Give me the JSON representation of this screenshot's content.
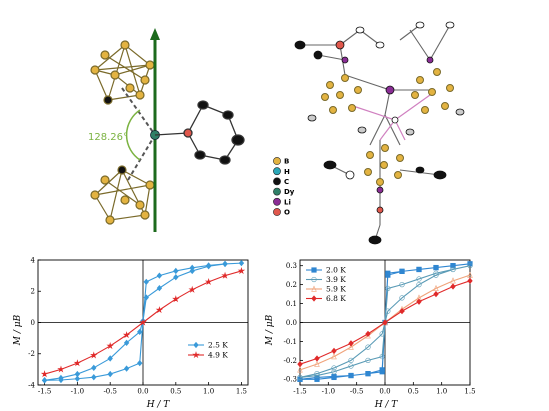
{
  "top_left": {
    "angle_label": "128.26°"
  },
  "element_legend": [
    {
      "symbol": "B",
      "color": "#e3b341"
    },
    {
      "symbol": "H",
      "color": "#2aa7b8"
    },
    {
      "symbol": "C",
      "color": "#111111"
    },
    {
      "symbol": "Dy",
      "color": "#2f7f67"
    },
    {
      "symbol": "Li",
      "color": "#8a2d95"
    },
    {
      "symbol": "O",
      "color": "#e0574c"
    }
  ],
  "chart_data": [
    {
      "type": "line",
      "xlabel": "H / T",
      "ylabel": "M / μB",
      "xlim": [
        -1.6,
        1.6
      ],
      "ylim": [
        -4,
        4
      ],
      "xticks": [
        -1.5,
        -1.0,
        -0.5,
        0.0,
        0.5,
        1.0,
        1.5
      ],
      "yticks": [
        -4,
        -2,
        0,
        2,
        4
      ],
      "legend_position": "bottom-right",
      "series": [
        {
          "name": "2.5 K",
          "color": "#3a9ad9",
          "marker": "diamond",
          "x": [
            -1.5,
            -1.25,
            -1.0,
            -0.75,
            -0.5,
            -0.25,
            -0.05,
            0.0,
            0.05,
            0.25,
            0.5,
            0.75,
            1.0,
            1.25,
            1.5,
            1.25,
            1.0,
            0.75,
            0.5,
            0.25,
            0.05,
            0.0,
            -0.05,
            -0.25,
            -0.5,
            -0.75,
            -1.0,
            -1.25,
            -1.5
          ],
          "y": [
            -3.7,
            -3.55,
            -3.3,
            -2.9,
            -2.3,
            -1.3,
            -0.6,
            0.1,
            2.6,
            3.0,
            3.3,
            3.5,
            3.65,
            3.75,
            3.8,
            3.75,
            3.6,
            3.3,
            2.9,
            2.2,
            1.6,
            0.1,
            -2.6,
            -2.95,
            -3.3,
            -3.5,
            -3.6,
            -3.68,
            -3.7
          ]
        },
        {
          "name": "4.9 K",
          "color": "#e02a2a",
          "marker": "star",
          "x": [
            -1.5,
            -1.25,
            -1.0,
            -0.75,
            -0.5,
            -0.25,
            0.0,
            0.25,
            0.5,
            0.75,
            1.0,
            1.25,
            1.5
          ],
          "y": [
            -3.3,
            -3.0,
            -2.6,
            -2.1,
            -1.5,
            -0.8,
            0.0,
            0.8,
            1.5,
            2.1,
            2.6,
            3.0,
            3.3
          ]
        }
      ]
    },
    {
      "type": "line",
      "xlabel": "H / T",
      "ylabel": "M / μB",
      "xlim": [
        -1.5,
        1.5
      ],
      "ylim": [
        -0.33,
        0.33
      ],
      "xticks": [
        -1.5,
        -1.0,
        -0.5,
        0.0,
        0.5,
        1.0,
        1.5
      ],
      "yticks": [
        -0.3,
        -0.2,
        -0.1,
        0.0,
        0.1,
        0.2,
        0.3
      ],
      "legend_position": "top-left",
      "series": [
        {
          "name": "2.0 K",
          "color": "#2f86d1",
          "marker": "square",
          "x": [
            -1.5,
            -1.2,
            -0.9,
            -0.6,
            -0.3,
            -0.05,
            0.0,
            0.05,
            0.3,
            0.6,
            0.9,
            1.2,
            1.5,
            1.2,
            0.9,
            0.6,
            0.3,
            0.05,
            0.0,
            -0.05,
            -0.3,
            -0.6,
            -0.9,
            -1.2,
            -1.5
          ],
          "y": [
            -0.3,
            -0.29,
            -0.285,
            -0.28,
            -0.27,
            -0.26,
            0.0,
            0.25,
            0.27,
            0.28,
            0.29,
            0.3,
            0.31,
            0.3,
            0.29,
            0.28,
            0.27,
            0.26,
            0.0,
            -0.25,
            -0.27,
            -0.28,
            -0.29,
            -0.3,
            -0.3
          ]
        },
        {
          "name": "3.9 K",
          "color": "#5a9bb6",
          "marker": "circle",
          "x": [
            -1.5,
            -1.2,
            -0.9,
            -0.6,
            -0.3,
            -0.05,
            0.0,
            0.05,
            0.3,
            0.6,
            0.9,
            1.2,
            1.5,
            1.2,
            0.9,
            0.6,
            0.3,
            0.05,
            0.0,
            -0.05,
            -0.3,
            -0.6,
            -0.9,
            -1.2,
            -1.5
          ],
          "y": [
            -0.29,
            -0.27,
            -0.24,
            -0.2,
            -0.13,
            -0.06,
            0.0,
            0.18,
            0.2,
            0.23,
            0.26,
            0.28,
            0.3,
            0.28,
            0.25,
            0.2,
            0.13,
            0.06,
            0.0,
            -0.18,
            -0.2,
            -0.23,
            -0.26,
            -0.28,
            -0.29
          ]
        },
        {
          "name": "5.9 K",
          "color": "#f0a37a",
          "marker": "triangle",
          "x": [
            -1.5,
            -1.2,
            -0.9,
            -0.6,
            -0.3,
            0.0,
            0.3,
            0.6,
            0.9,
            1.2,
            1.5
          ],
          "y": [
            -0.25,
            -0.22,
            -0.18,
            -0.13,
            -0.07,
            0.0,
            0.07,
            0.13,
            0.18,
            0.22,
            0.25
          ]
        },
        {
          "name": "6.8 K",
          "color": "#e02a2a",
          "marker": "diamond",
          "x": [
            -1.5,
            -1.2,
            -0.9,
            -0.6,
            -0.3,
            0.0,
            0.3,
            0.6,
            0.9,
            1.2,
            1.5
          ],
          "y": [
            -0.22,
            -0.19,
            -0.15,
            -0.11,
            -0.06,
            0.0,
            0.06,
            0.11,
            0.15,
            0.19,
            0.22
          ]
        }
      ]
    }
  ]
}
